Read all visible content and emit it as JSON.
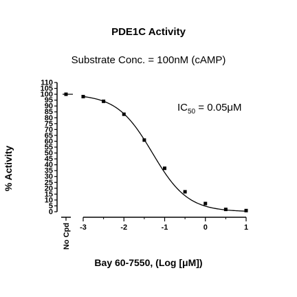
{
  "chart_data": {
    "type": "scatter",
    "title": "PDE1C Activity",
    "subtitle": "Substrate Conc. = 100nM (cAMP)",
    "xlabel": "Bay 60-7550, (Log [μM])",
    "ylabel": "% Activity",
    "annotation": {
      "prefix": "IC",
      "subscript": "50",
      "suffix": " = 0.05μM"
    },
    "ylim": [
      0,
      110
    ],
    "yticks": [
      "0",
      "5",
      "10",
      "15",
      "20",
      "25",
      "30",
      "35",
      "40",
      "45",
      "50",
      "55",
      "60",
      "65",
      "70",
      "75",
      "80",
      "85",
      "90",
      "95",
      "100",
      "105",
      "110"
    ],
    "xlim": [
      -3,
      1
    ],
    "xticks": [
      "-3",
      "-2",
      "-1",
      "0",
      "1"
    ],
    "control": {
      "label": "No Cpd",
      "value": 100
    },
    "series": [
      {
        "points": [
          {
            "x": -3.0,
            "y": 98
          },
          {
            "x": -2.5,
            "y": 94
          },
          {
            "x": -2.0,
            "y": 83
          },
          {
            "x": -1.5,
            "y": 61
          },
          {
            "x": -1.0,
            "y": 37
          },
          {
            "x": -0.5,
            "y": 17
          },
          {
            "x": 0.0,
            "y": 7
          },
          {
            "x": 0.5,
            "y": 2
          },
          {
            "x": 1.0,
            "y": 1
          }
        ],
        "fit": {
          "model": "four-parameter logistic",
          "top": 100,
          "bottom": 0,
          "logIC50": -1.3,
          "hill": 1
        }
      }
    ],
    "grid": false,
    "legend": "none"
  }
}
